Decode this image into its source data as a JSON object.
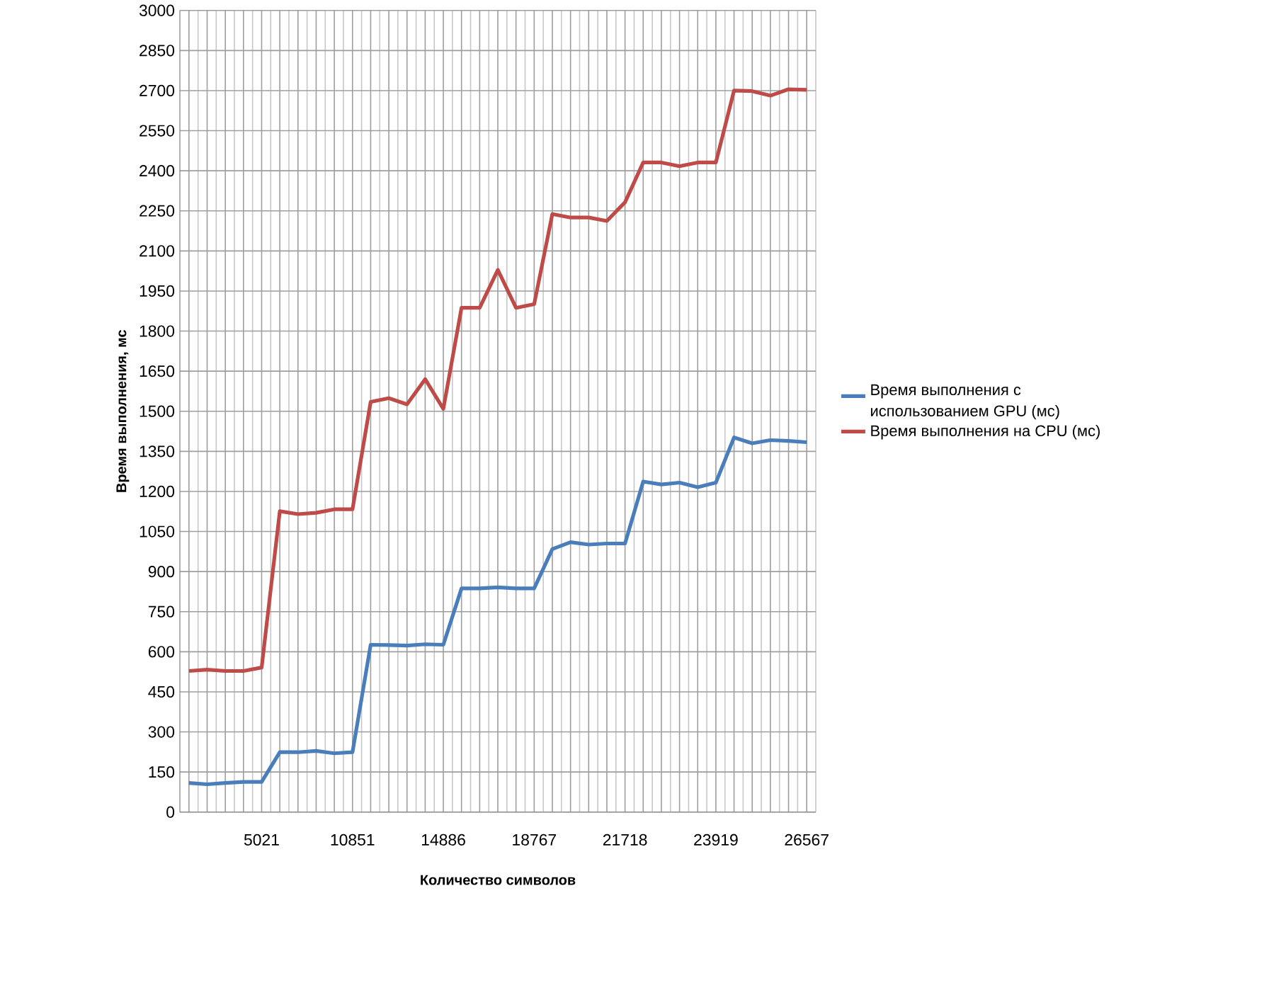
{
  "chart_data": {
    "type": "line",
    "xlabel": "Количество символов",
    "ylabel": "Время выполнения, мс",
    "categories": [
      null,
      null,
      null,
      null,
      "5021",
      null,
      null,
      null,
      null,
      "10851",
      null,
      null,
      null,
      null,
      "14886",
      null,
      null,
      null,
      null,
      "18767",
      null,
      null,
      null,
      null,
      "21718",
      null,
      null,
      null,
      null,
      "23919",
      null,
      null,
      null,
      null,
      "26567"
    ],
    "series": [
      {
        "name": "Время выполнения с использованием GPU (мс)",
        "color": "#4a7ebb",
        "values": [
          109,
          104,
          109,
          113,
          113,
          224,
          224,
          229,
          220,
          224,
          626,
          625,
          623,
          628,
          626,
          837,
          837,
          841,
          837,
          837,
          984,
          1010,
          1001,
          1005,
          1005,
          1237,
          1226,
          1233,
          1216,
          1233,
          1402,
          1380,
          1392,
          1389,
          1384
        ]
      },
      {
        "name": "Время выполнения на CPU (мс)",
        "color": "#be4b48",
        "values": [
          528,
          533,
          528,
          528,
          541,
          1126,
          1115,
          1120,
          1133,
          1133,
          1535,
          1549,
          1526,
          1620,
          1509,
          1887,
          1887,
          2029,
          1887,
          1901,
          2238,
          2225,
          2225,
          2212,
          2282,
          2431,
          2431,
          2417,
          2431,
          2431,
          2700,
          2698,
          2681,
          2705,
          2703
        ]
      }
    ],
    "ylim": [
      0,
      3000
    ],
    "yticks": [
      0,
      150,
      300,
      450,
      600,
      750,
      900,
      1050,
      1200,
      1350,
      1500,
      1650,
      1800,
      1950,
      2100,
      2250,
      2400,
      2550,
      2700,
      2850,
      3000
    ],
    "grid": true,
    "legend": "right",
    "marker": "none",
    "line_style": "solid"
  }
}
